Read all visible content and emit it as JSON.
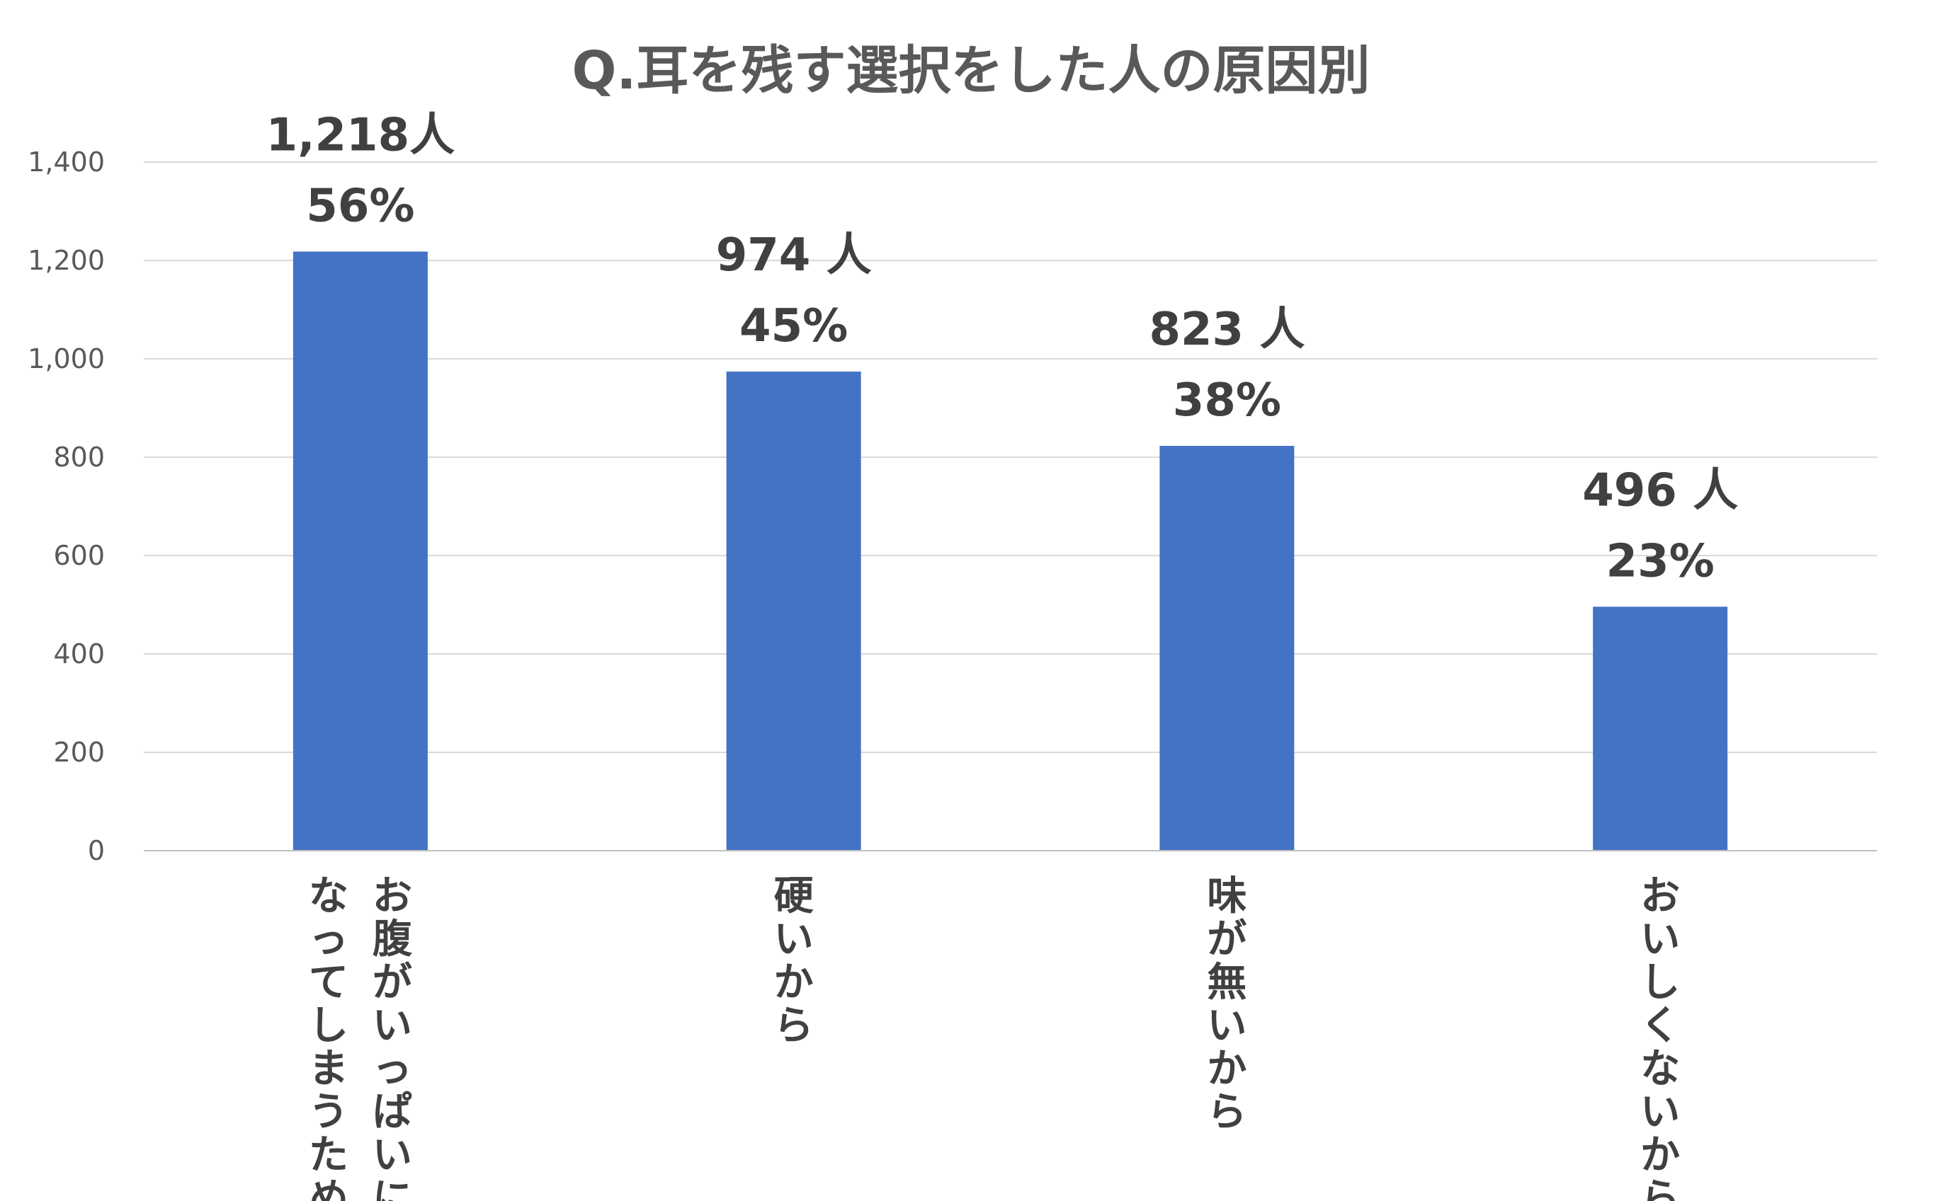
{
  "chart_data": {
    "type": "bar",
    "title": "Q.耳を残す選択をした人の原因別",
    "categories": [
      [
        "お腹がいっぱいに",
        "なってしまうため"
      ],
      [
        "硬いから"
      ],
      [
        "味が無いから"
      ],
      [
        "おいしくないから"
      ]
    ],
    "values": [
      1218,
      974,
      823,
      496
    ],
    "count_labels": [
      "1,218人",
      "974 人",
      "823 人",
      "496 人"
    ],
    "percent_labels": [
      "56%",
      "45%",
      "38%",
      "23%"
    ],
    "percentages": [
      56,
      45,
      38,
      23
    ],
    "ylim": [
      0,
      1400
    ],
    "yticks": [
      "0",
      "200",
      "400",
      "600",
      "800",
      "1,000",
      "1,200",
      "1,400"
    ],
    "ytick_values": [
      0,
      200,
      400,
      600,
      800,
      1000,
      1200,
      1400
    ],
    "grid": true,
    "legend": "none",
    "xlabel": "",
    "ylabel": "",
    "bar_color": "#4472C4",
    "grid_color": "#D9D9D9"
  }
}
